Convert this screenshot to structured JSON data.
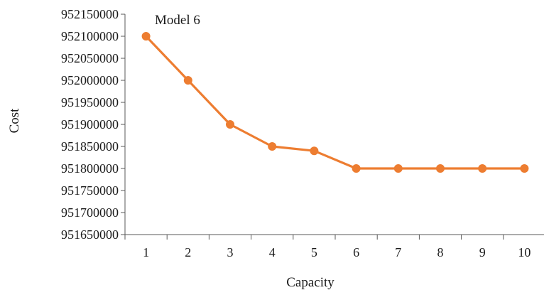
{
  "chart_data": {
    "type": "line",
    "title": "",
    "annotation": "Model 6",
    "xlabel": "Capacity",
    "ylabel": "Cost",
    "x": [
      1,
      2,
      3,
      4,
      5,
      6,
      7,
      8,
      9,
      10
    ],
    "x_tick_labels": [
      "1",
      "2",
      "3",
      "4",
      "5",
      "6",
      "7",
      "8",
      "9",
      "10"
    ],
    "y_tick_labels": [
      "951650000",
      "951700000",
      "951750000",
      "951800000",
      "951850000",
      "951900000",
      "951950000",
      "952000000",
      "952050000",
      "952100000",
      "952150000"
    ],
    "ylim": [
      951650000,
      952150000
    ],
    "y_tick_step": 50000,
    "series": [
      {
        "values": [
          952100000,
          952000000,
          951900000,
          951850000,
          951840000,
          951800000,
          951800000,
          951800000,
          951800000,
          951800000
        ],
        "color": "#ED7D31"
      }
    ],
    "grid": false,
    "legend": "none",
    "markers": true
  }
}
